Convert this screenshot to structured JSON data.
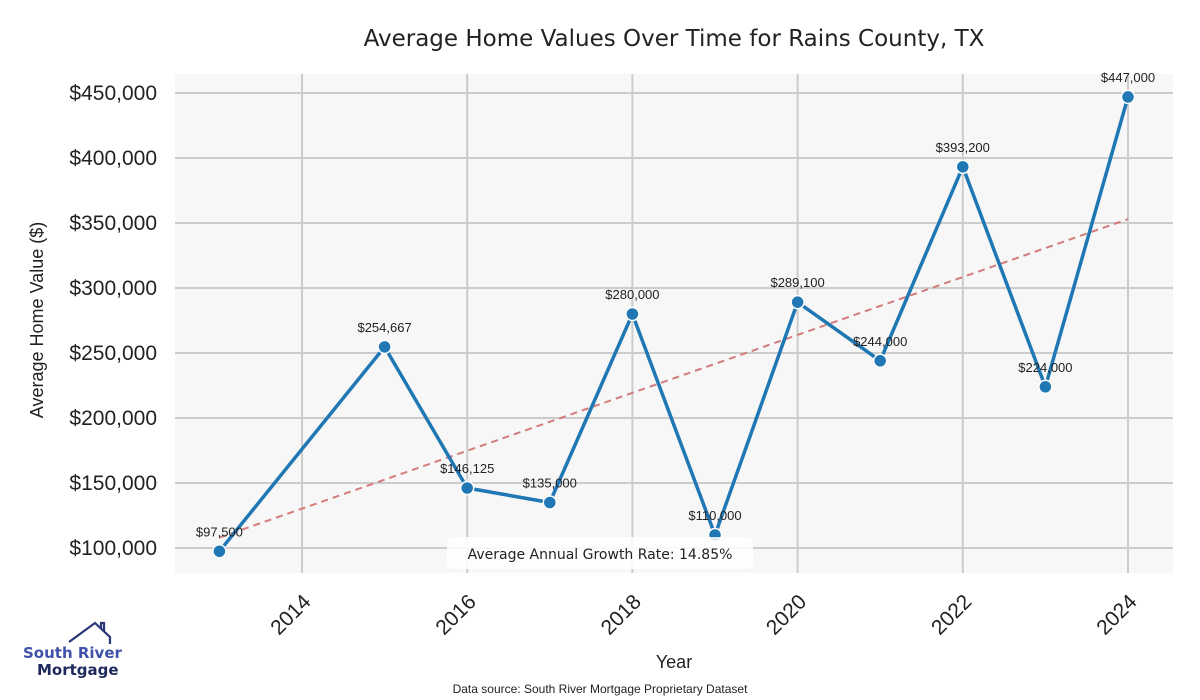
{
  "chart_data": {
    "type": "line",
    "title": "Average Home Values Over Time for Rains County, TX",
    "xlabel": "Year",
    "ylabel": "Average Home Value ($)",
    "x": [
      2013,
      2015,
      2016,
      2017,
      2018,
      2019,
      2020,
      2021,
      2022,
      2023,
      2024
    ],
    "series": [
      {
        "name": "Average Home Value",
        "values": [
          97500,
          254667,
          146125,
          135000,
          280000,
          110000,
          289100,
          244000,
          393200,
          224000,
          447000
        ],
        "labels": [
          "$97,500",
          "$254,667",
          "$146,125",
          "$135,000",
          "$280,000",
          "$110,000",
          "$289,100",
          "$244,000",
          "$393,200",
          "$224,000",
          "$447,000"
        ],
        "color": "#1f77b4"
      }
    ],
    "trendline": {
      "name": "Trend",
      "start": [
        2013,
        108000
      ],
      "end": [
        2024,
        353000
      ],
      "color": "#d47c7c",
      "style": "dashed"
    },
    "xticks": [
      2014,
      2016,
      2018,
      2020,
      2022,
      2024
    ],
    "xtick_labels": [
      "2014",
      "2016",
      "2018",
      "2020",
      "2022",
      "2024"
    ],
    "yticks": [
      100000,
      150000,
      200000,
      250000,
      300000,
      350000,
      400000,
      450000
    ],
    "ytick_labels": [
      "$100,000",
      "$150,000",
      "$200,000",
      "$250,000",
      "$300,000",
      "$350,000",
      "$400,000",
      "$450,000"
    ],
    "xlim": [
      2012.45,
      2024.55
    ],
    "ylim": [
      80000,
      464000
    ],
    "grid": true,
    "background": "#f7f7f7",
    "grid_color": "#cccccc",
    "annotation": "Average Annual Growth Rate: 14.85%",
    "source_note": "Data source: South River Mortgage Proprietary Dataset"
  },
  "logo": {
    "line1": "South River",
    "line2": "Mortgage",
    "color_primary": "#3f51a8",
    "color_dark": "#1e2a5e"
  }
}
